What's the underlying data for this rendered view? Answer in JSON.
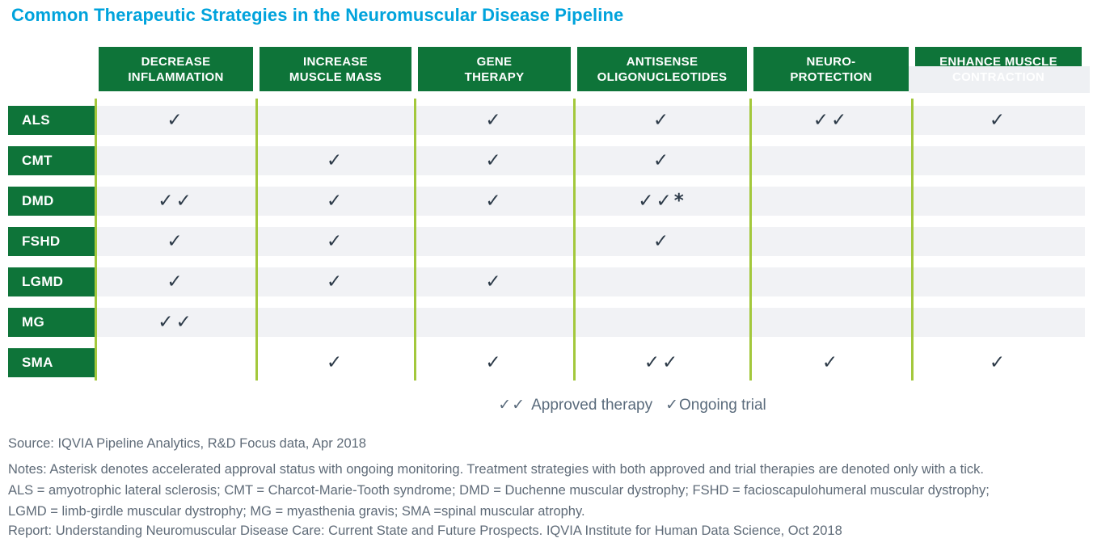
{
  "title": "Common Therapeutic Strategies in the Neuromuscular Disease Pipeline",
  "colors": {
    "header_green": "#0E7439",
    "lime_line": "#A3C83C",
    "row_band": "#F1F2F5",
    "check": "#2C3A48",
    "title_cyan": "#00A3DC",
    "legend_text": "#5A6B7C",
    "footer_text": "#5F6B78",
    "clip_gray": "#EEF0F3"
  },
  "matrix": {
    "columns": [
      {
        "line1": "DECREASE",
        "line2": "INFLAMMATION"
      },
      {
        "line1": "INCREASE",
        "line2": "MUSCLE MASS"
      },
      {
        "line1": "GENE",
        "line2": "THERAPY"
      },
      {
        "line1": "ANTISENSE",
        "line2": "OLIGONUCLEOTIDES"
      },
      {
        "line1": "NEURO-",
        "line2": "PROTECTION"
      },
      {
        "line1": "ENHANCE MUSCLE",
        "line2": "CONTRACTION",
        "clipped": true
      }
    ],
    "rows": [
      {
        "label": "ALS",
        "cells": [
          "✓",
          "",
          "✓",
          "✓",
          "✓✓",
          "✓"
        ]
      },
      {
        "label": "CMT",
        "cells": [
          "",
          "✓",
          "✓",
          "✓",
          "",
          ""
        ]
      },
      {
        "label": "DMD",
        "cells": [
          "✓✓",
          "✓",
          "✓",
          "✓✓*",
          "",
          ""
        ]
      },
      {
        "label": "FSHD",
        "cells": [
          "✓",
          "✓",
          "",
          "✓",
          "",
          ""
        ]
      },
      {
        "label": "LGMD",
        "cells": [
          "✓",
          "✓",
          "✓",
          "",
          "",
          ""
        ]
      },
      {
        "label": "MG",
        "cells": [
          "✓✓",
          "",
          "",
          "",
          "",
          ""
        ]
      },
      {
        "label": "SMA",
        "cells": [
          "",
          "✓",
          "✓",
          "✓✓",
          "✓",
          "✓"
        ],
        "white": true
      }
    ]
  },
  "legend": {
    "approved_symbol": "✓✓",
    "approved_label": "Approved therapy",
    "ongoing_symbol": "✓",
    "ongoing_label": "Ongoing trial"
  },
  "footer": {
    "source": "Source: IQVIA Pipeline Analytics, R&D Focus data, Apr 2018",
    "notes": "Notes: Asterisk denotes accelerated approval status with ongoing monitoring. Treatment strategies with both approved and trial therapies are denoted only with a tick.",
    "abbrev_line1": "ALS = amyotrophic lateral sclerosis; CMT = Charcot-Marie-Tooth syndrome; DMD = Duchenne muscular dystrophy; FSHD = facioscapulohumeral muscular dystrophy;",
    "abbrev_line2": "LGMD = limb-girdle muscular dystrophy; MG = myasthenia gravis; SMA =spinal muscular atrophy.",
    "report": "Report: Understanding Neuromuscular Disease Care: Current State and Future Prospects. IQVIA Institute for Human Data Science, Oct 2018"
  },
  "chart_data": {
    "type": "table",
    "title": "Common Therapeutic Strategies in the Neuromuscular Disease Pipeline",
    "columns": [
      "Decrease inflammation",
      "Increase muscle mass",
      "Gene therapy",
      "Antisense oligonucleotides",
      "Neuro-protection",
      "Enhance muscle contraction"
    ],
    "rows": [
      "ALS",
      "CMT",
      "DMD",
      "FSHD",
      "LGMD",
      "MG",
      "SMA"
    ],
    "cells": [
      [
        "✓",
        "",
        "✓",
        "✓",
        "✓✓",
        "✓"
      ],
      [
        "",
        "✓",
        "✓",
        "✓",
        "",
        ""
      ],
      [
        "✓✓",
        "✓",
        "✓",
        "✓✓*",
        "",
        ""
      ],
      [
        "✓",
        "✓",
        "",
        "✓",
        "",
        ""
      ],
      [
        "✓",
        "✓",
        "✓",
        "",
        "",
        ""
      ],
      [
        "✓✓",
        "",
        "",
        "",
        "",
        ""
      ],
      [
        "",
        "✓",
        "✓",
        "✓✓",
        "✓",
        "✓"
      ]
    ],
    "legend": {
      "✓✓": "Approved therapy",
      "✓": "Ongoing trial"
    },
    "annotations": [
      "* denotes accelerated approval status with ongoing monitoring"
    ]
  }
}
